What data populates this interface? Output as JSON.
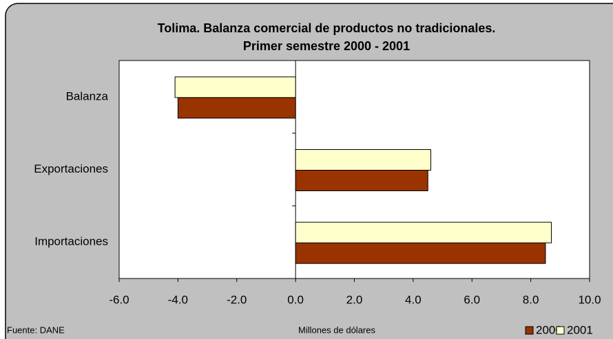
{
  "chart_data": {
    "type": "barh",
    "title": [
      "Tolima. Balanza comercial de productos no tradicionales.",
      "Primer semestre 2000 - 2001"
    ],
    "categories": [
      "Balanza",
      "Exportaciones",
      "Importaciones"
    ],
    "series": [
      {
        "name": "2000",
        "color": "#993300",
        "values": [
          -4.0,
          4.5,
          8.5
        ]
      },
      {
        "name": "2001",
        "color": "#FFFFCC",
        "values": [
          -4.1,
          4.6,
          8.7
        ]
      }
    ],
    "xlim": [
      -6,
      10
    ],
    "xticks": [
      {
        "value": -6,
        "label": "-6.0"
      },
      {
        "value": -4,
        "label": "-4.0"
      },
      {
        "value": -2,
        "label": "-2.0"
      },
      {
        "value": 0,
        "label": "0.0"
      },
      {
        "value": 2,
        "label": "2.0"
      },
      {
        "value": 4,
        "label": "4.0"
      },
      {
        "value": 6,
        "label": "6.0"
      },
      {
        "value": 8,
        "label": "8.0"
      },
      {
        "value": 10,
        "label": "10.0"
      }
    ],
    "x_label": "Millones de dólares",
    "source": "Fuente: DANE",
    "grid": false
  }
}
